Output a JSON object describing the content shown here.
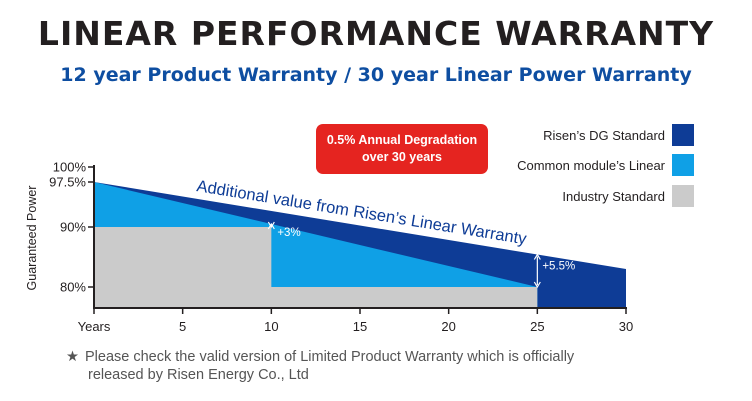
{
  "header": {
    "title": "LINEAR PERFORMANCE WARRANTY",
    "subtitle": "12 year Product Warranty / 30 year Linear Power Warranty"
  },
  "chart_data": {
    "type": "area",
    "ylabel": "Guaranteed Power",
    "xlabel": "",
    "x_tick_labels": [
      "Years",
      "5",
      "10",
      "15",
      "20",
      "25",
      "30"
    ],
    "x_ticks": [
      0,
      5,
      10,
      15,
      20,
      25,
      30
    ],
    "y_tick_labels": [
      "100%",
      "97.5%",
      "90%",
      "80%"
    ],
    "y_ticks": [
      100,
      97.5,
      90,
      80
    ],
    "xlim": [
      0,
      30
    ],
    "ylim": [
      77,
      100
    ],
    "legend_position": "top-right",
    "series": [
      {
        "name": "Risen’s DG Standard",
        "color": "#0e3c96",
        "x": [
          0,
          30
        ],
        "y": [
          97.5,
          83
        ]
      },
      {
        "name": "Common module’s Linear",
        "color": "#0fa0e6",
        "x": [
          0,
          25
        ],
        "y": [
          97.5,
          80
        ]
      },
      {
        "name": "Industry Standard",
        "color": "#cbcbcb",
        "x": [
          0,
          10,
          10,
          25
        ],
        "y": [
          90,
          90,
          80,
          80
        ]
      }
    ],
    "annotations": {
      "curve_label": "Additional value from Risen’s Linear Warranty",
      "callout_line1": "0.5% Annual Degradation",
      "callout_line2": "over 30 years",
      "delta_10": "+3%",
      "delta_25": "+5.5%"
    },
    "colors": {
      "callout_bg": "#e52420",
      "axis": "#231f20",
      "label_blue": "#0e3c96"
    }
  },
  "footnote": {
    "star": "★",
    "line1": "Please check the valid version of Limited Product Warranty which is officially",
    "line2": "released by Risen Energy Co., Ltd"
  }
}
